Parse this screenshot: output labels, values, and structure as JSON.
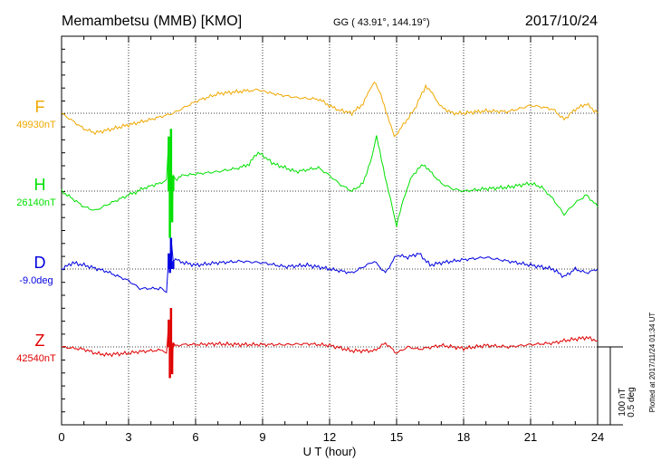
{
  "header": {
    "station": "Memambetsu (MMB)  [KMO]",
    "coords": "GG ( 43.91°, 144.19°)",
    "date": "2017/10/24"
  },
  "chart_data": {
    "type": "line",
    "x_range": [
      0,
      24
    ],
    "x_ticks": [
      "0",
      "3",
      "6",
      "9",
      "12",
      "15",
      "18",
      "21",
      "24"
    ],
    "xlabel": "U T (hour)",
    "grid": true,
    "series": [
      {
        "name": "F",
        "baseline": "49930nT",
        "color": "#f0a800",
        "x": [
          0,
          0.5,
          1,
          1.5,
          2,
          3,
          4,
          5,
          6,
          7,
          8,
          8.8,
          9.5,
          10.5,
          11.5,
          12.3,
          13,
          13.5,
          13.8,
          14,
          14.3,
          14.6,
          14.9,
          15.3,
          15.8,
          16.3,
          16.6,
          17,
          17.5,
          18,
          19,
          20,
          21,
          21.5,
          22,
          22.5,
          23,
          23.5,
          24
        ],
        "y": [
          0,
          -10,
          -20,
          -25,
          -22,
          -15,
          -8,
          0,
          15,
          25,
          28,
          30,
          25,
          20,
          18,
          5,
          0,
          12,
          30,
          40,
          25,
          -5,
          -30,
          -15,
          5,
          35,
          25,
          8,
          0,
          0,
          3,
          2,
          10,
          8,
          5,
          -8,
          5,
          12,
          0
        ]
      },
      {
        "name": "H",
        "baseline": "26140nT",
        "color": "#00e000",
        "x": [
          0,
          0.5,
          1,
          1.5,
          2,
          3,
          3.8,
          4.4,
          4.7,
          4.8,
          4.85,
          4.9,
          4.95,
          5.0,
          5.1,
          5.4,
          6,
          7,
          8,
          8.4,
          8.8,
          9.5,
          10.5,
          11.5,
          12,
          12.5,
          13,
          13.5,
          13.9,
          14.1,
          14.4,
          14.8,
          15,
          15.3,
          15.7,
          16.2,
          16.5,
          17,
          17.5,
          18,
          19,
          20,
          21,
          21.5,
          22,
          22.5,
          23,
          23.5,
          24
        ],
        "y": [
          0,
          -10,
          -20,
          -25,
          -18,
          -5,
          5,
          10,
          15,
          70,
          -60,
          80,
          -40,
          20,
          15,
          20,
          22,
          25,
          30,
          35,
          50,
          35,
          25,
          30,
          20,
          8,
          0,
          10,
          45,
          70,
          30,
          -20,
          -45,
          -10,
          20,
          35,
          25,
          10,
          3,
          0,
          3,
          5,
          10,
          5,
          -10,
          -30,
          -15,
          -5,
          -20
        ]
      },
      {
        "name": "D",
        "baseline": "-9.0deg",
        "color": "#0000e0",
        "x": [
          0,
          0.5,
          1,
          2,
          3,
          3.5,
          4,
          4.5,
          4.7,
          4.8,
          4.85,
          4.9,
          5.0,
          5.1,
          5.5,
          6,
          7,
          8,
          9,
          10,
          11,
          12,
          13,
          14,
          14.5,
          15,
          15.5,
          16,
          16.5,
          17,
          17.5,
          18,
          19,
          20,
          21,
          22,
          22.5,
          23,
          23.5,
          24
        ],
        "y": [
          0,
          8,
          5,
          -3,
          -15,
          -25,
          -25,
          -25,
          -30,
          20,
          -5,
          40,
          10,
          12,
          8,
          5,
          8,
          10,
          8,
          3,
          5,
          0,
          -5,
          10,
          -5,
          18,
          15,
          20,
          5,
          8,
          10,
          12,
          15,
          10,
          5,
          0,
          -10,
          0,
          -5,
          0
        ]
      },
      {
        "name": "Z",
        "baseline": "42540nT",
        "color": "#e00000",
        "x": [
          0,
          1,
          1.5,
          2,
          3,
          3.5,
          4,
          4.5,
          4.7,
          4.8,
          4.85,
          4.9,
          4.95,
          5.0,
          5.1,
          5.5,
          6,
          7,
          8,
          9,
          10,
          11,
          12,
          13,
          14,
          14.5,
          15,
          15.5,
          16,
          17,
          18,
          19,
          20,
          21,
          22,
          22.5,
          23,
          23.5,
          24
        ],
        "y": [
          0,
          -3,
          -8,
          -10,
          -8,
          -6,
          -5,
          -4,
          -8,
          35,
          -40,
          50,
          -35,
          5,
          2,
          3,
          3,
          4,
          3,
          3,
          3,
          4,
          2,
          -5,
          -5,
          5,
          -8,
          0,
          -3,
          2,
          -2,
          2,
          0,
          3,
          5,
          8,
          10,
          12,
          8
        ]
      }
    ],
    "scale": {
      "nt_label": "100 nT",
      "deg_label": "0.5 deg",
      "nt_per_bar": 100
    },
    "plotted": "Plotted at 2017/11/24 01:34 UT"
  }
}
